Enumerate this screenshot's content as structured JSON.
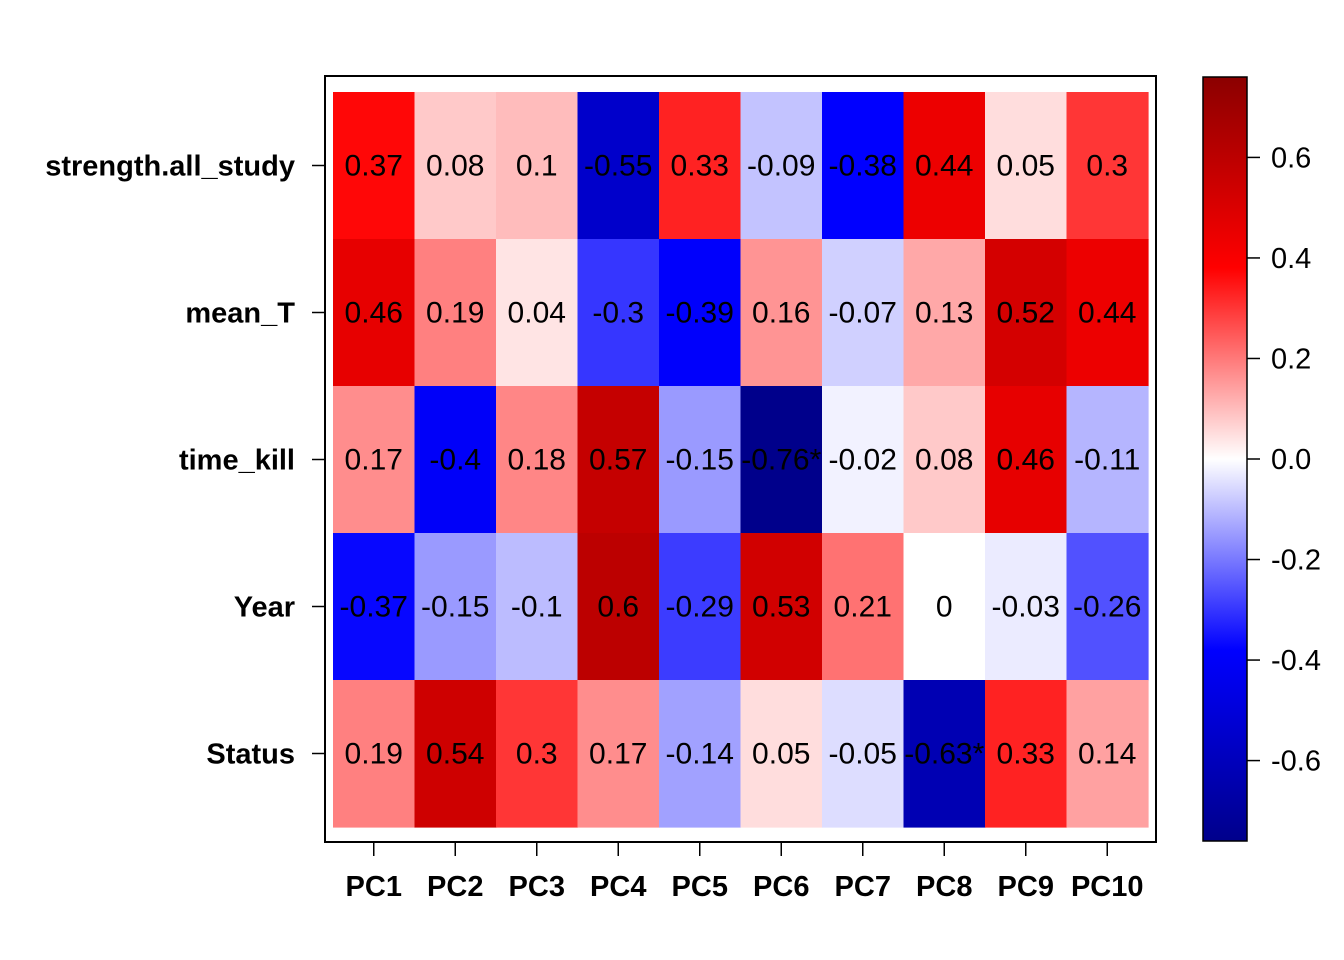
{
  "chart_data": {
    "type": "heatmap",
    "rows": [
      "strength.all_study",
      "mean_T",
      "time_kill",
      "Year",
      "Status"
    ],
    "columns": [
      "PC1",
      "PC2",
      "PC3",
      "PC4",
      "PC5",
      "PC6",
      "PC7",
      "PC8",
      "PC9",
      "PC10"
    ],
    "values": [
      [
        0.37,
        0.08,
        0.1,
        -0.55,
        0.33,
        -0.09,
        -0.38,
        0.44,
        0.05,
        0.3
      ],
      [
        0.46,
        0.19,
        0.04,
        -0.3,
        -0.39,
        0.16,
        -0.07,
        0.13,
        0.52,
        0.44
      ],
      [
        0.17,
        -0.4,
        0.18,
        0.57,
        -0.15,
        -0.76,
        -0.02,
        0.08,
        0.46,
        -0.11
      ],
      [
        -0.37,
        -0.15,
        -0.1,
        0.6,
        -0.29,
        0.53,
        0.21,
        0,
        -0.03,
        -0.26
      ],
      [
        0.19,
        0.54,
        0.3,
        0.17,
        -0.14,
        0.05,
        -0.05,
        -0.63,
        0.33,
        0.14
      ]
    ],
    "labels": [
      [
        "0.37",
        "0.08",
        "0.1",
        "-0.55",
        "0.33",
        "-0.09",
        "-0.38",
        "0.44",
        "0.05",
        "0.3"
      ],
      [
        "0.46",
        "0.19",
        "0.04",
        "-0.3",
        "-0.39",
        "0.16",
        "-0.07",
        "0.13",
        "0.52",
        "0.44"
      ],
      [
        "0.17",
        "-0.4",
        "0.18",
        "0.57",
        "-0.15",
        "-0.76*",
        "-0.02",
        "0.08",
        "0.46",
        "-0.11"
      ],
      [
        "-0.37",
        "-0.15",
        "-0.1",
        "0.6",
        "-0.29",
        "0.53",
        "0.21",
        "0",
        "-0.03",
        "-0.26"
      ],
      [
        "0.19",
        "0.54",
        "0.3",
        "0.17",
        "-0.14",
        "0.05",
        "-0.05",
        "-0.63*",
        "0.33",
        "0.14"
      ]
    ],
    "colorbar": {
      "range": [
        -0.76,
        0.76
      ],
      "ticks": [
        -0.6,
        -0.4,
        -0.2,
        0.0,
        0.2,
        0.4,
        0.6
      ],
      "tick_labels": [
        "-0.6",
        "-0.4",
        "-0.2",
        "0.0",
        "0.2",
        "0.4",
        "0.6"
      ],
      "colors": [
        "#00008b",
        "#0000ff",
        "#ffffff",
        "#ff0000",
        "#8b0000"
      ]
    }
  }
}
